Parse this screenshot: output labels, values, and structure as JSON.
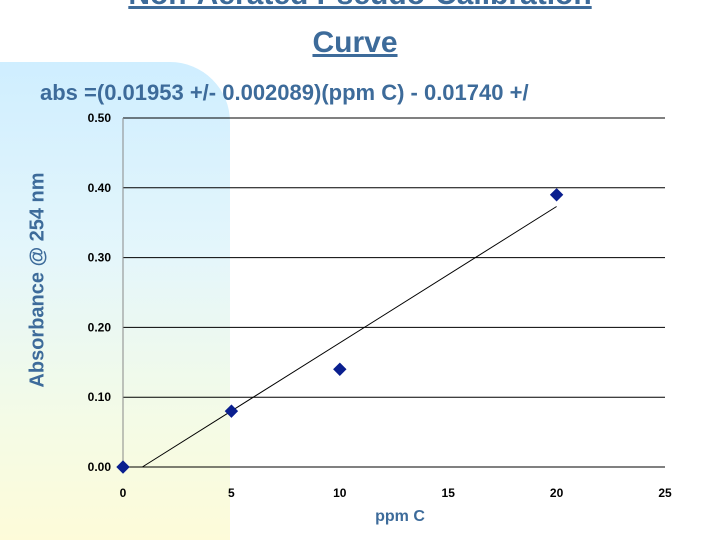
{
  "slide": {
    "title_line1": "Non-Aerated Pseudo-Calibration",
    "title_line2": "Curve",
    "equation": "abs =(0.01953 +/- 0.002089)(ppm C) - 0.01740 +/"
  },
  "chart_data": {
    "type": "scatter",
    "title": "",
    "xlabel": "ppm C",
    "ylabel": "Absorbance @ 254 nm",
    "xlim": [
      0,
      25
    ],
    "ylim": [
      0.0,
      0.5
    ],
    "xticks": [
      0,
      5,
      10,
      15,
      20,
      25
    ],
    "yticks": [
      0.0,
      0.1,
      0.2,
      0.3,
      0.4,
      0.5
    ],
    "ytick_labels": [
      "0.00",
      "0.10",
      "0.20",
      "0.30",
      "0.40",
      "0.50"
    ],
    "grid": "horizontal",
    "series": [
      {
        "x": [
          0,
          5,
          10,
          20
        ],
        "y": [
          0.0,
          0.08,
          0.14,
          0.39
        ],
        "marker": "diamond",
        "color": "#0a1f8f"
      }
    ],
    "trendline": {
      "slope": 0.01953,
      "intercept": -0.0174,
      "color": "#000000"
    }
  }
}
